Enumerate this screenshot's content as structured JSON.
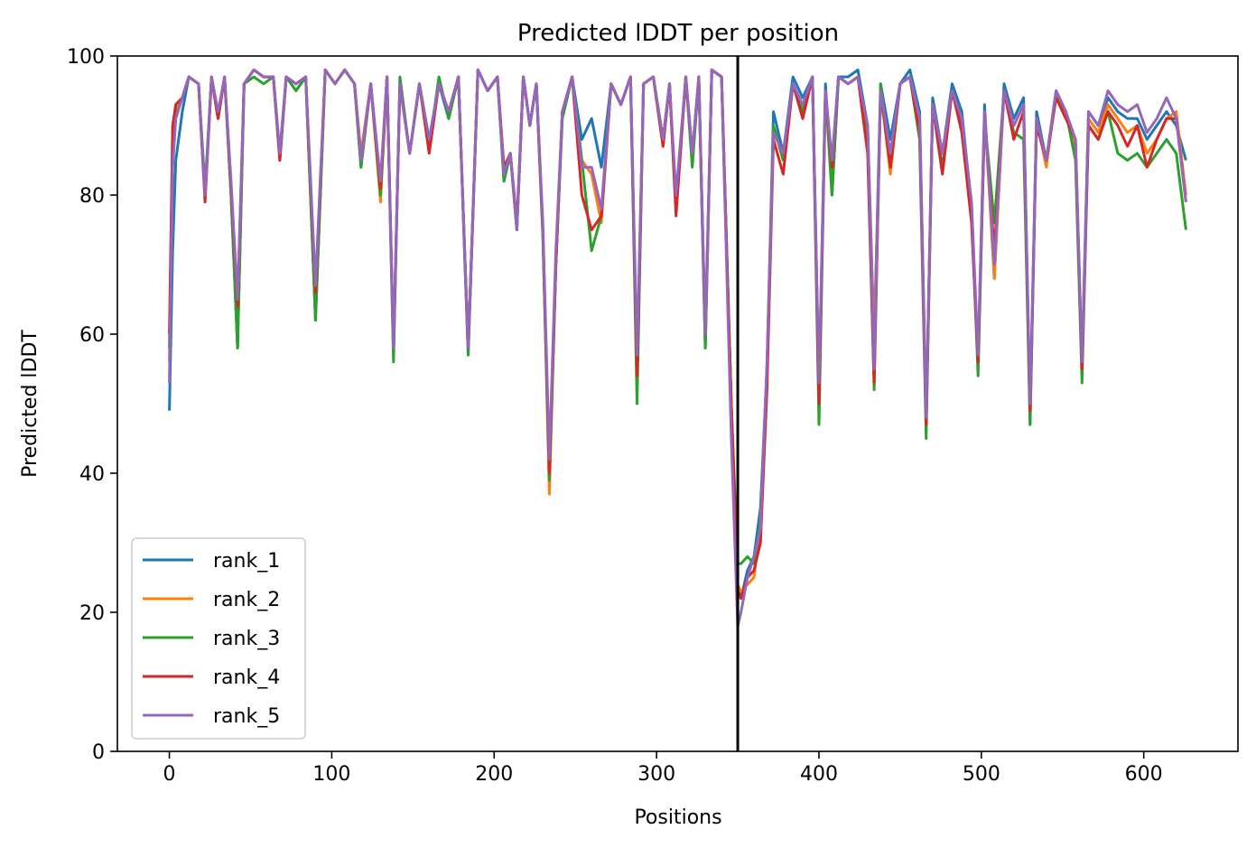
{
  "chart_data": {
    "type": "line",
    "title": "Predicted lDDT per position",
    "xlabel": "Positions",
    "ylabel": "Predicted lDDT",
    "xlim": [
      -32,
      658
    ],
    "ylim": [
      0,
      100
    ],
    "xticks": [
      0,
      100,
      200,
      300,
      400,
      500,
      600
    ],
    "yticks": [
      0,
      20,
      40,
      60,
      80,
      100
    ],
    "grid": false,
    "legend_position": "lower-left",
    "chain_boundary_x": 350,
    "series": [
      {
        "name": "rank_1",
        "color": "#1f77b4",
        "x": [
          0,
          2,
          4,
          8,
          12,
          18,
          22,
          26,
          30,
          34,
          38,
          42,
          46,
          52,
          58,
          64,
          68,
          72,
          78,
          84,
          90,
          96,
          102,
          108,
          114,
          118,
          124,
          130,
          134,
          138,
          142,
          148,
          154,
          160,
          166,
          172,
          178,
          184,
          190,
          196,
          202,
          206,
          210,
          214,
          218,
          222,
          226,
          230,
          234,
          238,
          242,
          248,
          254,
          260,
          266,
          272,
          278,
          284,
          288,
          292,
          298,
          304,
          308,
          312,
          318,
          322,
          326,
          330,
          334,
          340,
          346,
          350,
          352,
          356,
          360,
          364,
          368,
          372,
          378,
          384,
          390,
          396,
          400,
          404,
          408,
          412,
          418,
          424,
          430,
          434,
          438,
          444,
          450,
          456,
          462,
          466,
          470,
          476,
          482,
          488,
          494,
          498,
          502,
          508,
          514,
          520,
          526,
          530,
          534,
          540,
          546,
          552,
          558,
          562,
          566,
          572,
          578,
          584,
          590,
          596,
          602,
          608,
          614,
          620,
          626
        ],
        "y": [
          49,
          72,
          85,
          92,
          97,
          96,
          80,
          97,
          91,
          97,
          80,
          58,
          96,
          98,
          97,
          97,
          85,
          97,
          95,
          97,
          62,
          98,
          96,
          98,
          96,
          84,
          96,
          81,
          97,
          57,
          96,
          86,
          96,
          88,
          96,
          91,
          97,
          57,
          98,
          95,
          97,
          82,
          86,
          75,
          97,
          90,
          96,
          75,
          39,
          70,
          92,
          97,
          88,
          91,
          84,
          96,
          93,
          97,
          55,
          96,
          97,
          88,
          96,
          78,
          97,
          85,
          97,
          58,
          98,
          97,
          49,
          24,
          22,
          26,
          28,
          35,
          55,
          92,
          86,
          97,
          94,
          97,
          52,
          96,
          80,
          97,
          97,
          98,
          90,
          59,
          96,
          88,
          96,
          98,
          92,
          47,
          94,
          86,
          96,
          92,
          78,
          56,
          93,
          68,
          96,
          91,
          94,
          47,
          92,
          85,
          95,
          92,
          87,
          55,
          92,
          90,
          94,
          92,
          91,
          91,
          88,
          90,
          92,
          90,
          85
        ]
      },
      {
        "name": "rank_2",
        "color": "#ff7f0e",
        "x": [
          0,
          2,
          4,
          8,
          12,
          18,
          22,
          26,
          30,
          34,
          38,
          42,
          46,
          52,
          58,
          64,
          68,
          72,
          78,
          84,
          90,
          96,
          102,
          108,
          114,
          118,
          124,
          130,
          134,
          138,
          142,
          148,
          154,
          160,
          166,
          172,
          178,
          184,
          190,
          196,
          202,
          206,
          210,
          214,
          218,
          222,
          226,
          230,
          234,
          238,
          242,
          248,
          254,
          260,
          266,
          272,
          278,
          284,
          288,
          292,
          298,
          304,
          308,
          312,
          318,
          322,
          326,
          330,
          334,
          340,
          346,
          350,
          352,
          356,
          360,
          364,
          368,
          372,
          378,
          384,
          390,
          396,
          400,
          404,
          408,
          412,
          418,
          424,
          430,
          434,
          438,
          444,
          450,
          456,
          462,
          466,
          470,
          476,
          482,
          488,
          494,
          498,
          502,
          508,
          514,
          520,
          526,
          530,
          534,
          540,
          546,
          552,
          558,
          562,
          566,
          572,
          578,
          584,
          590,
          596,
          602,
          608,
          614,
          620,
          626
        ],
        "y": [
          56,
          86,
          92,
          94,
          97,
          96,
          80,
          97,
          91,
          97,
          81,
          59,
          96,
          98,
          97,
          97,
          86,
          97,
          96,
          97,
          63,
          98,
          96,
          98,
          96,
          86,
          96,
          79,
          97,
          57,
          96,
          86,
          96,
          87,
          96,
          92,
          97,
          58,
          98,
          95,
          97,
          84,
          86,
          75,
          97,
          90,
          96,
          75,
          37,
          70,
          92,
          97,
          85,
          83,
          76,
          96,
          93,
          97,
          53,
          96,
          97,
          87,
          96,
          78,
          97,
          85,
          97,
          59,
          98,
          97,
          50,
          24,
          23,
          24,
          25,
          33,
          55,
          90,
          85,
          96,
          92,
          97,
          52,
          95,
          84,
          97,
          96,
          97,
          89,
          58,
          95,
          83,
          96,
          97,
          91,
          48,
          93,
          86,
          95,
          91,
          77,
          57,
          92,
          68,
          95,
          90,
          93,
          48,
          91,
          84,
          95,
          92,
          87,
          55,
          91,
          89,
          93,
          91,
          89,
          90,
          86,
          88,
          91,
          92,
          80
        ]
      },
      {
        "name": "rank_3",
        "color": "#2ca02c",
        "x": [
          0,
          2,
          4,
          8,
          12,
          18,
          22,
          26,
          30,
          34,
          38,
          42,
          46,
          52,
          58,
          64,
          68,
          72,
          78,
          84,
          90,
          96,
          102,
          108,
          114,
          118,
          124,
          130,
          134,
          138,
          142,
          148,
          154,
          160,
          166,
          172,
          178,
          184,
          190,
          196,
          202,
          206,
          210,
          214,
          218,
          222,
          226,
          230,
          234,
          238,
          242,
          248,
          254,
          260,
          266,
          272,
          278,
          284,
          288,
          292,
          298,
          304,
          308,
          312,
          318,
          322,
          326,
          330,
          334,
          340,
          346,
          350,
          352,
          356,
          360,
          364,
          368,
          372,
          378,
          384,
          390,
          396,
          400,
          404,
          408,
          412,
          418,
          424,
          430,
          434,
          438,
          444,
          450,
          456,
          462,
          466,
          470,
          476,
          482,
          488,
          494,
          498,
          502,
          508,
          514,
          520,
          526,
          530,
          534,
          540,
          546,
          552,
          558,
          562,
          566,
          572,
          578,
          584,
          590,
          596,
          602,
          608,
          614,
          620,
          626
        ],
        "y": [
          58,
          88,
          93,
          94,
          97,
          96,
          81,
          97,
          91,
          97,
          80,
          58,
          96,
          97,
          96,
          97,
          86,
          97,
          95,
          97,
          62,
          98,
          96,
          98,
          96,
          84,
          96,
          80,
          97,
          56,
          97,
          86,
          96,
          87,
          97,
          91,
          97,
          57,
          98,
          95,
          97,
          82,
          86,
          75,
          97,
          90,
          96,
          74,
          39,
          70,
          91,
          97,
          85,
          72,
          77,
          96,
          93,
          97,
          50,
          96,
          97,
          88,
          96,
          78,
          97,
          84,
          97,
          58,
          98,
          97,
          50,
          27,
          27,
          28,
          27,
          33,
          54,
          90,
          85,
          96,
          92,
          97,
          47,
          95,
          80,
          97,
          96,
          97,
          88,
          52,
          96,
          84,
          96,
          97,
          88,
          45,
          93,
          84,
          95,
          90,
          78,
          54,
          91,
          76,
          95,
          89,
          88,
          47,
          91,
          85,
          94,
          92,
          85,
          53,
          90,
          88,
          92,
          86,
          85,
          86,
          84,
          86,
          88,
          86,
          75
        ]
      },
      {
        "name": "rank_4",
        "color": "#d62728",
        "x": [
          0,
          2,
          4,
          8,
          12,
          18,
          22,
          26,
          30,
          34,
          38,
          42,
          46,
          52,
          58,
          64,
          68,
          72,
          78,
          84,
          90,
          96,
          102,
          108,
          114,
          118,
          124,
          130,
          134,
          138,
          142,
          148,
          154,
          160,
          166,
          172,
          178,
          184,
          190,
          196,
          202,
          206,
          210,
          214,
          218,
          222,
          226,
          230,
          234,
          238,
          242,
          248,
          254,
          260,
          266,
          272,
          278,
          284,
          288,
          292,
          298,
          304,
          308,
          312,
          318,
          322,
          326,
          330,
          334,
          340,
          346,
          350,
          352,
          356,
          360,
          364,
          368,
          372,
          378,
          384,
          390,
          396,
          400,
          404,
          408,
          412,
          418,
          424,
          430,
          434,
          438,
          444,
          450,
          456,
          462,
          466,
          470,
          476,
          482,
          488,
          494,
          498,
          502,
          508,
          514,
          520,
          526,
          530,
          534,
          540,
          546,
          552,
          558,
          562,
          566,
          572,
          578,
          584,
          590,
          596,
          602,
          608,
          614,
          620,
          626
        ],
        "y": [
          60,
          90,
          93,
          94,
          97,
          96,
          79,
          97,
          91,
          97,
          81,
          64,
          96,
          98,
          97,
          97,
          85,
          97,
          96,
          97,
          66,
          98,
          96,
          98,
          96,
          85,
          96,
          81,
          97,
          58,
          96,
          86,
          96,
          86,
          96,
          92,
          97,
          58,
          98,
          95,
          97,
          84,
          86,
          76,
          97,
          90,
          96,
          75,
          40,
          70,
          92,
          97,
          80,
          75,
          77,
          96,
          93,
          97,
          54,
          96,
          97,
          87,
          96,
          77,
          97,
          86,
          97,
          60,
          98,
          97,
          50,
          23,
          22,
          25,
          26,
          30,
          52,
          88,
          83,
          96,
          91,
          97,
          50,
          95,
          84,
          97,
          96,
          97,
          86,
          53,
          95,
          84,
          96,
          97,
          89,
          47,
          93,
          83,
          95,
          89,
          76,
          56,
          91,
          72,
          95,
          88,
          92,
          49,
          90,
          85,
          94,
          91,
          88,
          55,
          90,
          88,
          92,
          90,
          87,
          90,
          84,
          88,
          91,
          91,
          79
        ]
      },
      {
        "name": "rank_5",
        "color": "#9467bd",
        "x": [
          0,
          2,
          4,
          8,
          12,
          18,
          22,
          26,
          30,
          34,
          38,
          42,
          46,
          52,
          58,
          64,
          68,
          72,
          78,
          84,
          90,
          96,
          102,
          108,
          114,
          118,
          124,
          130,
          134,
          138,
          142,
          148,
          154,
          160,
          166,
          172,
          178,
          184,
          190,
          196,
          202,
          206,
          210,
          214,
          218,
          222,
          226,
          230,
          234,
          238,
          242,
          248,
          254,
          260,
          266,
          272,
          278,
          284,
          288,
          292,
          298,
          304,
          308,
          312,
          318,
          322,
          326,
          330,
          334,
          340,
          346,
          350,
          352,
          356,
          360,
          364,
          368,
          372,
          378,
          384,
          390,
          396,
          400,
          404,
          408,
          412,
          418,
          424,
          430,
          434,
          438,
          444,
          450,
          456,
          462,
          466,
          470,
          476,
          482,
          488,
          494,
          498,
          502,
          508,
          514,
          520,
          526,
          530,
          534,
          540,
          546,
          552,
          558,
          562,
          566,
          572,
          578,
          584,
          590,
          596,
          602,
          608,
          614,
          620,
          626
        ],
        "y": [
          53,
          84,
          91,
          94,
          97,
          96,
          80,
          97,
          92,
          97,
          82,
          65,
          96,
          98,
          97,
          97,
          86,
          97,
          96,
          97,
          67,
          98,
          96,
          98,
          96,
          85,
          96,
          82,
          97,
          58,
          96,
          86,
          96,
          88,
          96,
          92,
          97,
          58,
          98,
          95,
          97,
          83,
          86,
          75,
          97,
          90,
          96,
          76,
          42,
          72,
          92,
          97,
          84,
          84,
          78,
          96,
          93,
          97,
          57,
          96,
          97,
          88,
          96,
          80,
          97,
          86,
          97,
          60,
          98,
          97,
          45,
          18,
          20,
          25,
          28,
          32,
          56,
          89,
          86,
          96,
          93,
          97,
          53,
          95,
          85,
          97,
          96,
          97,
          90,
          55,
          95,
          86,
          96,
          97,
          91,
          48,
          93,
          86,
          95,
          91,
          79,
          57,
          92,
          70,
          95,
          90,
          93,
          50,
          91,
          85,
          95,
          92,
          88,
          56,
          92,
          90,
          95,
          93,
          92,
          93,
          89,
          91,
          94,
          91,
          79
        ]
      }
    ]
  }
}
